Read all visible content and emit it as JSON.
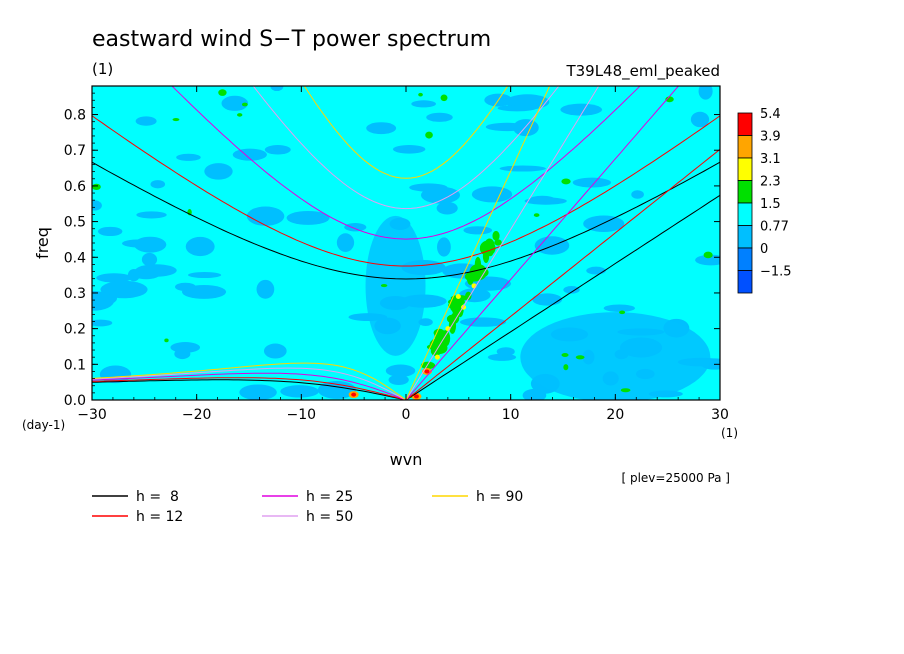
{
  "chart_data": {
    "type": "heatmap",
    "title": "eastward wind S−T power spectrum",
    "subtitle_left": "(1)",
    "subtitle_right": "T39L48_eml_peaked",
    "xlabel": "wvn",
    "ylabel": "freq",
    "x_unit": "(1)",
    "y_unit": "(day-1)",
    "xlim": [
      -30,
      30
    ],
    "ylim": [
      0,
      0.88
    ],
    "x_ticks": [
      -30,
      -20,
      -10,
      0,
      10,
      20,
      30
    ],
    "x_tick_labels": [
      "−30",
      "−20",
      "−10",
      "0",
      "10",
      "20",
      "30"
    ],
    "y_ticks": [
      0,
      0.1,
      0.2,
      0.3,
      0.4,
      0.5,
      0.6,
      0.7,
      0.8
    ],
    "y_tick_labels": [
      "0.0",
      "0.1",
      "0.2",
      "0.3",
      "0.4",
      "0.5",
      "0.6",
      "0.7",
      "0.8"
    ],
    "note": "[ plev=25000 Pa ]",
    "colorbar": {
      "levels": [
        "5.4",
        "3.9",
        "3.1",
        "2.3",
        "1.5",
        "0.77",
        "0",
        "−1.5"
      ],
      "colors": [
        "#ff0000",
        "#ffa500",
        "#ffff00",
        "#00e000",
        "#00ffff",
        "#00bfff",
        "#0080ff",
        "#0050ff"
      ]
    },
    "field_colors": {
      "background": "#00ffff",
      "low": "#00bfff",
      "high1": "#00e000",
      "high2": "#ffff00",
      "high3": "#ffa500",
      "high4": "#ff0000"
    },
    "dispersion_curves": [
      {
        "label": "h =  8",
        "h": 8,
        "color": "#000000"
      },
      {
        "label": "h = 12",
        "h": 12,
        "color": "#ff0000"
      },
      {
        "label": "h = 25",
        "h": 25,
        "color": "#e000e0"
      },
      {
        "label": "h = 50",
        "h": 50,
        "color": "#e0a0f0"
      },
      {
        "label": "h = 90",
        "h": 90,
        "color": "#ffd700"
      }
    ]
  }
}
